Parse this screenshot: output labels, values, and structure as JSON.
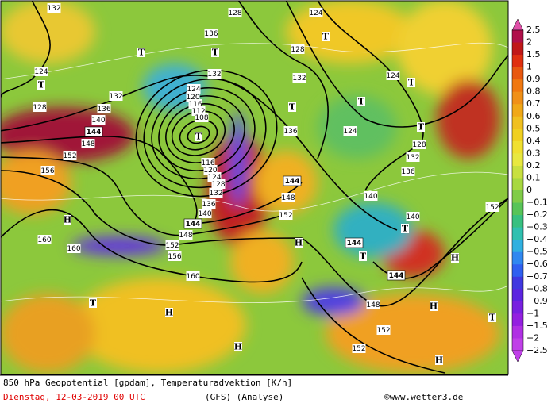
{
  "legend": {
    "labels": [
      "2.5",
      "2",
      "1.5",
      "1",
      "0.9",
      "0.8",
      "0.7",
      "0.6",
      "0.5",
      "0.4",
      "0.3",
      "0.2",
      "0.1",
      "0",
      "−0.1",
      "−0.2",
      "−0.3",
      "−0.4",
      "−0.5",
      "−0.6",
      "−0.7",
      "−0.8",
      "−0.9",
      "−1",
      "−1.5",
      "−2",
      "−2.5"
    ]
  },
  "map": {
    "labels": [
      "132",
      "128",
      "124",
      "128",
      "124",
      "T",
      "128",
      "132",
      "136",
      "140",
      "144",
      "148",
      "152",
      "156",
      "160",
      "160",
      "H",
      "T",
      "136",
      "132",
      "124",
      "120",
      "116",
      "112",
      "108",
      "116",
      "120",
      "124",
      "128",
      "132",
      "136",
      "140",
      "144",
      "148",
      "152",
      "156",
      "160",
      "144",
      "148",
      "152",
      "132",
      "136",
      "124",
      "T",
      "T",
      "124",
      "T",
      "128",
      "132",
      "136",
      "140",
      "140",
      "T",
      "144",
      "T",
      "144",
      "148",
      "152",
      "152",
      "152",
      "H",
      "H",
      "T",
      "H",
      "H",
      "H",
      "T",
      "H",
      "T",
      "T",
      "T",
      "T"
    ]
  },
  "footer": {
    "line1": "850 hPa Geopotential [gpdam], Temperaturadvektion [K/h]",
    "date": "Dienstag, 12-03-2019  00 UTC",
    "model": "(GFS)  (Analyse)",
    "credit": "©www.wetter3.de"
  }
}
